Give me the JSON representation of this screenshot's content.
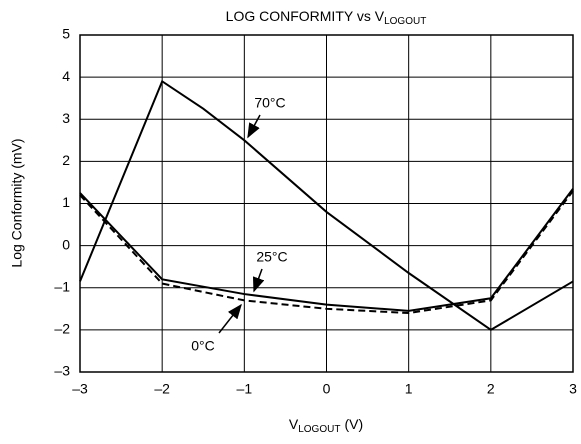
{
  "chart_data": {
    "type": "line",
    "title": "LOG CONFORMITY vs V",
    "title_subscript": "LOGOUT",
    "x_label": "V",
    "x_label_subscript": "LOGOUT",
    "x_label_unit": "(V)",
    "y_label": "Log Conformity (mV)",
    "xlim": [
      -3,
      3
    ],
    "xticks": [
      {
        "value": -3,
        "label": "–3"
      },
      {
        "value": -2,
        "label": "–2"
      },
      {
        "value": -1,
        "label": "–1"
      },
      0,
      1,
      2,
      3
    ],
    "ylim": [
      -3,
      5
    ],
    "yticks": [
      {
        "value": -3,
        "label": "–3"
      },
      {
        "value": -2,
        "label": "–2"
      },
      {
        "value": -1,
        "label": "–1"
      },
      0,
      1,
      2,
      3,
      4,
      5
    ],
    "grid": true,
    "series": [
      {
        "name": "70°C",
        "color": "#000000",
        "dash": false,
        "x": [
          -3,
          -2,
          -1.5,
          -1,
          0,
          1,
          2,
          3
        ],
        "values": [
          -0.85,
          3.9,
          3.25,
          2.5,
          0.8,
          -0.65,
          -2.0,
          -0.85
        ]
      },
      {
        "name": "25°C",
        "color": "#000000",
        "dash": false,
        "x": [
          -3,
          -2,
          -1,
          0,
          1,
          2,
          3
        ],
        "values": [
          1.25,
          -0.8,
          -1.15,
          -1.4,
          -1.55,
          -1.25,
          1.35
        ]
      },
      {
        "name": "0°C",
        "color": "#000000",
        "dash": true,
        "x": [
          -3,
          -2,
          -1,
          0,
          1,
          2,
          3
        ],
        "values": [
          1.2,
          -0.9,
          -1.3,
          -1.5,
          -1.6,
          -1.3,
          1.3
        ]
      }
    ]
  }
}
